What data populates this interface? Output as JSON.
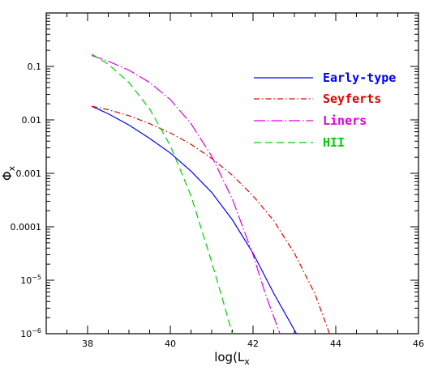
{
  "chart_data": {
    "type": "line",
    "title": "",
    "xlabel": "log(L_x)",
    "ylabel": "Φ_x",
    "xlim": [
      37,
      46
    ],
    "ylim": [
      1e-06,
      1
    ],
    "yscale": "log",
    "grid": false,
    "legend_position": "top-right",
    "x_ticks": [
      {
        "value": 38,
        "label": "38"
      },
      {
        "value": 40,
        "label": "40"
      },
      {
        "value": 42,
        "label": "42"
      },
      {
        "value": 44,
        "label": "44"
      },
      {
        "value": 46,
        "label": "46"
      }
    ],
    "y_ticks": [
      {
        "value": 0.1,
        "label": "0.1",
        "sup": ""
      },
      {
        "value": 0.01,
        "label": "0.01",
        "sup": ""
      },
      {
        "value": 0.001,
        "label": "0.001",
        "sup": ""
      },
      {
        "value": 0.0001,
        "label": "0.0001",
        "sup": ""
      },
      {
        "value": 1e-05,
        "label": "10",
        "sup": "−5"
      },
      {
        "value": 1e-06,
        "label": "10",
        "sup": "−6"
      }
    ],
    "series": [
      {
        "name": "Early-type",
        "color": "#0000ff",
        "dash": "solid",
        "x": [
          38.1,
          38.5,
          39.0,
          39.5,
          40.0,
          40.5,
          41.0,
          41.5,
          42.0,
          42.5,
          43.05
        ],
        "y": [
          0.018,
          0.013,
          0.008,
          0.0045,
          0.0024,
          0.0011,
          0.00044,
          0.000135,
          3.2e-05,
          5.7e-06,
          1e-06
        ]
      },
      {
        "name": "Seyferts",
        "color": "#e00000",
        "dash": "dashdot",
        "x": [
          38.1,
          38.5,
          39.0,
          39.5,
          40.0,
          40.5,
          41.0,
          41.5,
          42.0,
          42.5,
          43.0,
          43.5,
          43.85
        ],
        "y": [
          0.018,
          0.0155,
          0.012,
          0.0085,
          0.0057,
          0.0035,
          0.0019,
          0.00092,
          0.00038,
          0.00013,
          3.2e-05,
          5.5e-06,
          1e-06
        ]
      },
      {
        "name": "Liners",
        "color": "#e000e0",
        "dash": "longdashdot",
        "x": [
          38.1,
          38.5,
          39.0,
          39.5,
          40.0,
          40.5,
          41.0,
          41.5,
          42.0,
          42.3,
          42.65
        ],
        "y": [
          0.16,
          0.125,
          0.085,
          0.05,
          0.024,
          0.0085,
          0.0021,
          0.00033,
          3e-05,
          5.5e-06,
          1e-06
        ]
      },
      {
        "name": "HII",
        "color": "#00d000",
        "dash": "dashed",
        "x": [
          38.1,
          38.5,
          39.0,
          39.5,
          40.0,
          40.5,
          41.0,
          41.3,
          41.5
        ],
        "y": [
          0.17,
          0.11,
          0.05,
          0.016,
          0.0033,
          0.00038,
          2.2e-05,
          3.5e-06,
          1e-06
        ]
      }
    ]
  }
}
